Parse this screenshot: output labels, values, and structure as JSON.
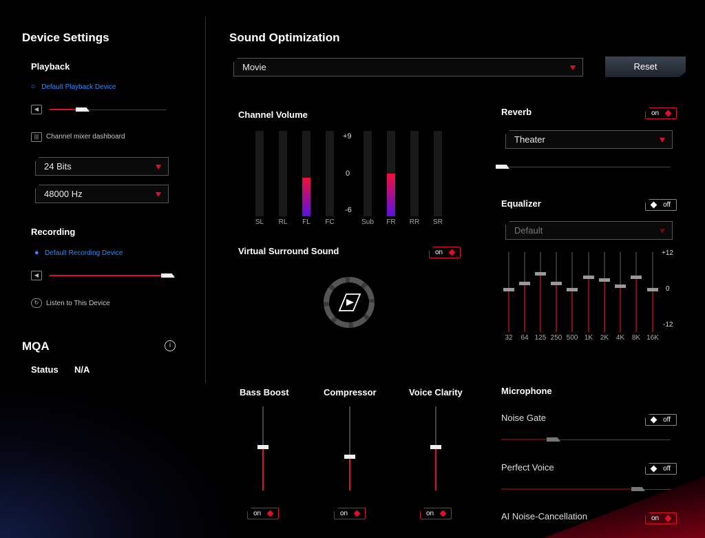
{
  "device_settings": {
    "title": "Device Settings",
    "playback": {
      "title": "Playback",
      "device_icon": "headphones-icon",
      "device_label": "Default Playback Device",
      "volume_percent": 30,
      "channel_mixer_label": "Channel mixer dashboard",
      "bit_depth": "24 Bits",
      "sample_rate": "48000 Hz"
    },
    "recording": {
      "title": "Recording",
      "device_icon": "microphone-icon",
      "device_label": "Default Recording Device",
      "volume_percent": 95,
      "listen_label": "Listen to This Device"
    }
  },
  "mqa": {
    "title": "MQA",
    "status_label": "Status",
    "status_value": "N/A"
  },
  "sound_optimization": {
    "title": "Sound Optimization",
    "preset": "Movie",
    "reset_label": "Reset",
    "channel_volume": {
      "title": "Channel Volume",
      "scale_top": "+9",
      "scale_mid": "0",
      "scale_bottom": "-6",
      "channels": [
        {
          "label": "SL",
          "level": 0
        },
        {
          "label": "RL",
          "level": 0
        },
        {
          "label": "FL",
          "level": 0.67
        },
        {
          "label": "FC",
          "level": 0
        },
        {
          "label": "Sub",
          "level": 0
        },
        {
          "label": "FR",
          "level": 0.74
        },
        {
          "label": "RR",
          "level": 0
        },
        {
          "label": "SR",
          "level": 0
        }
      ]
    },
    "virtual_surround": {
      "title": "Virtual Surround Sound",
      "toggle_label": "on",
      "enabled": true
    },
    "reverb": {
      "title": "Reverb",
      "toggle_label": "on",
      "preset": "Theater",
      "level_percent": 8
    },
    "equalizer": {
      "title": "Equalizer",
      "toggle_label": "off",
      "preset": "Default",
      "scale_top": "+12",
      "scale_mid": "0",
      "scale_bottom": "-12",
      "bands": [
        {
          "label": "32",
          "gain": 0
        },
        {
          "label": "64",
          "gain": 2
        },
        {
          "label": "125",
          "gain": 5
        },
        {
          "label": "250",
          "gain": 2
        },
        {
          "label": "500",
          "gain": 0
        },
        {
          "label": "1K",
          "gain": 4
        },
        {
          "label": "2K",
          "gain": 3
        },
        {
          "label": "4K",
          "gain": 1
        },
        {
          "label": "8K",
          "gain": 4
        },
        {
          "label": "16K",
          "gain": 0
        }
      ]
    },
    "effects": [
      {
        "title": "Bass Boost",
        "toggle_label": "on",
        "level": 0.52
      },
      {
        "title": "Compressor",
        "toggle_label": "on",
        "level": 0.4
      },
      {
        "title": "Voice Clarity",
        "toggle_label": "on",
        "level": 0.52
      }
    ],
    "microphone": {
      "title": "Microphone",
      "noise_gate": {
        "title": "Noise Gate",
        "toggle_label": "off",
        "level_percent": 30
      },
      "perfect_voice": {
        "title": "Perfect Voice",
        "toggle_label": "off",
        "level_percent": 78
      },
      "ai_noise_cancellation": {
        "title": "AI Noise-Cancellation",
        "toggle_label": "on"
      }
    }
  }
}
